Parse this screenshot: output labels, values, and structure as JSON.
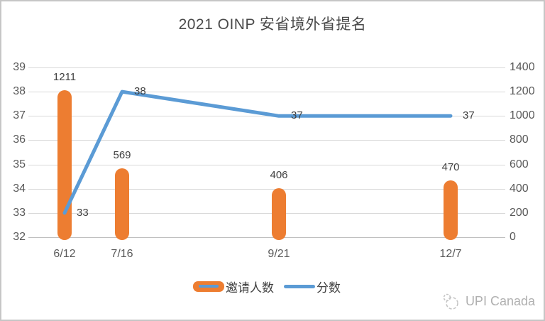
{
  "frame": {
    "background": "#ffffff",
    "border_color": "#c6c6c6"
  },
  "title": "2021 OINP 安省境外省提名",
  "chart_data": {
    "type": "combo-bar-line",
    "title": "2021 OINP 安省境外省提名",
    "categories": [
      "6/12",
      "7/16",
      "9/21",
      "12/7"
    ],
    "series": [
      {
        "name": "邀请人数",
        "type": "bar",
        "axis": "right",
        "color": "#ED7D31",
        "values": [
          1211,
          569,
          406,
          470
        ]
      },
      {
        "name": "分数",
        "type": "line",
        "axis": "left",
        "color": "#5B9BD5",
        "values": [
          33,
          38,
          37,
          37
        ]
      }
    ],
    "left_axis": {
      "min": 32,
      "max": 39,
      "ticks": [
        39,
        38,
        37,
        36,
        35,
        34,
        33,
        32
      ]
    },
    "right_axis": {
      "min": 0,
      "max": 1400,
      "ticks": [
        1400,
        1200,
        1000,
        800,
        600,
        400,
        200,
        0
      ]
    },
    "grid": true,
    "legend_position": "bottom",
    "gridline_color": "#d9d9d9",
    "axis_label_color": "#595959",
    "data_label_color": "#404040"
  },
  "legend": {
    "items": [
      {
        "label": "邀请人数",
        "color": "#ED7D31"
      },
      {
        "label": "分数",
        "color": "#5B9BD5"
      }
    ]
  },
  "watermark": {
    "text": "UPI Canada"
  }
}
